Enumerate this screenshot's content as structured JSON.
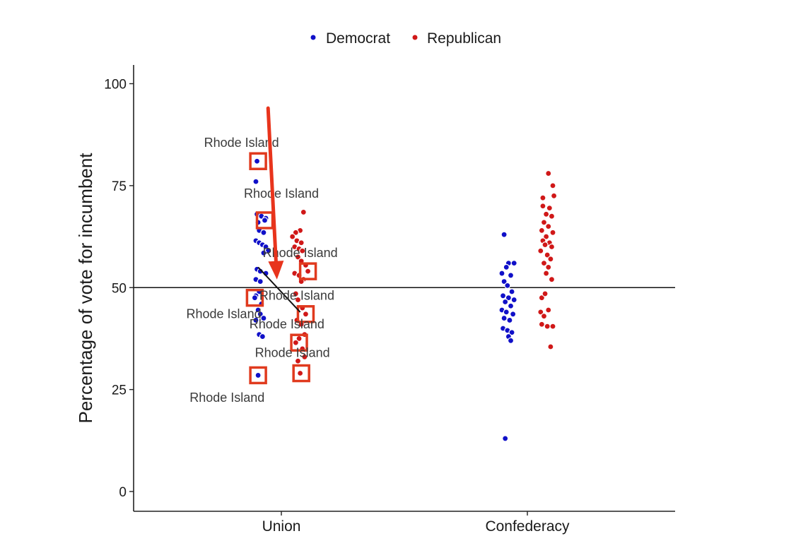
{
  "chart_data": {
    "type": "scatter",
    "ylabel": "Percentage of vote for incumbent",
    "categories": [
      "Union",
      "Confederacy"
    ],
    "ylim": [
      0,
      100
    ],
    "yticks": [
      0,
      25,
      50,
      75,
      100
    ],
    "reference_line": 50,
    "legend": {
      "placement": "top",
      "entries": [
        "Democrat",
        "Republican"
      ]
    },
    "colors": {
      "Democrat": "#1010c8",
      "Republican": "#d01818",
      "highlight": "#e03a1e",
      "arrow": "#e8341c"
    },
    "series": [
      {
        "name": "Democrat",
        "points": [
          {
            "category": "Union",
            "offset": -0.22,
            "y": 81
          },
          {
            "category": "Union",
            "offset": -0.23,
            "y": 76
          },
          {
            "category": "Union",
            "offset": -0.22,
            "y": 68
          },
          {
            "category": "Union",
            "offset": -0.18,
            "y": 67.5
          },
          {
            "category": "Union",
            "offset": -0.14,
            "y": 67
          },
          {
            "category": "Union",
            "offset": -0.15,
            "y": 66.5
          },
          {
            "category": "Union",
            "offset": -0.21,
            "y": 66
          },
          {
            "category": "Union",
            "offset": -0.2,
            "y": 64
          },
          {
            "category": "Union",
            "offset": -0.16,
            "y": 63.5
          },
          {
            "category": "Union",
            "offset": -0.23,
            "y": 61.5
          },
          {
            "category": "Union",
            "offset": -0.2,
            "y": 61
          },
          {
            "category": "Union",
            "offset": -0.17,
            "y": 60.5
          },
          {
            "category": "Union",
            "offset": -0.14,
            "y": 60
          },
          {
            "category": "Union",
            "offset": -0.12,
            "y": 59
          },
          {
            "category": "Union",
            "offset": -0.16,
            "y": 58.5
          },
          {
            "category": "Union",
            "offset": -0.22,
            "y": 54.5
          },
          {
            "category": "Union",
            "offset": -0.19,
            "y": 54
          },
          {
            "category": "Union",
            "offset": -0.14,
            "y": 53.5
          },
          {
            "category": "Union",
            "offset": -0.23,
            "y": 52
          },
          {
            "category": "Union",
            "offset": -0.19,
            "y": 51.5
          },
          {
            "category": "Union",
            "offset": -0.2,
            "y": 49
          },
          {
            "category": "Union",
            "offset": -0.23,
            "y": 48
          },
          {
            "category": "Union",
            "offset": -0.24,
            "y": 47.5
          },
          {
            "category": "Union",
            "offset": -0.18,
            "y": 46
          },
          {
            "category": "Union",
            "offset": -0.21,
            "y": 44.5
          },
          {
            "category": "Union",
            "offset": -0.19,
            "y": 43.5
          },
          {
            "category": "Union",
            "offset": -0.16,
            "y": 42.5
          },
          {
            "category": "Union",
            "offset": -0.23,
            "y": 42
          },
          {
            "category": "Union",
            "offset": -0.2,
            "y": 38.5
          },
          {
            "category": "Union",
            "offset": -0.17,
            "y": 38
          },
          {
            "category": "Union",
            "offset": -0.21,
            "y": 28.5
          },
          {
            "category": "Confederacy",
            "offset": -0.21,
            "y": 63
          },
          {
            "category": "Confederacy",
            "offset": -0.17,
            "y": 56
          },
          {
            "category": "Confederacy",
            "offset": -0.12,
            "y": 56
          },
          {
            "category": "Confederacy",
            "offset": -0.19,
            "y": 55
          },
          {
            "category": "Confederacy",
            "offset": -0.23,
            "y": 53.5
          },
          {
            "category": "Confederacy",
            "offset": -0.15,
            "y": 53
          },
          {
            "category": "Confederacy",
            "offset": -0.21,
            "y": 51.5
          },
          {
            "category": "Confederacy",
            "offset": -0.18,
            "y": 50.5
          },
          {
            "category": "Confederacy",
            "offset": -0.14,
            "y": 49
          },
          {
            "category": "Confederacy",
            "offset": -0.22,
            "y": 48
          },
          {
            "category": "Confederacy",
            "offset": -0.17,
            "y": 47.5
          },
          {
            "category": "Confederacy",
            "offset": -0.12,
            "y": 47
          },
          {
            "category": "Confederacy",
            "offset": -0.2,
            "y": 46.5
          },
          {
            "category": "Confederacy",
            "offset": -0.15,
            "y": 45.5
          },
          {
            "category": "Confederacy",
            "offset": -0.23,
            "y": 44.5
          },
          {
            "category": "Confederacy",
            "offset": -0.19,
            "y": 44
          },
          {
            "category": "Confederacy",
            "offset": -0.13,
            "y": 43.5
          },
          {
            "category": "Confederacy",
            "offset": -0.21,
            "y": 42.5
          },
          {
            "category": "Confederacy",
            "offset": -0.16,
            "y": 42
          },
          {
            "category": "Confederacy",
            "offset": -0.22,
            "y": 40
          },
          {
            "category": "Confederacy",
            "offset": -0.18,
            "y": 39.5
          },
          {
            "category": "Confederacy",
            "offset": -0.14,
            "y": 39
          },
          {
            "category": "Confederacy",
            "offset": -0.17,
            "y": 38
          },
          {
            "category": "Confederacy",
            "offset": -0.15,
            "y": 37
          },
          {
            "category": "Confederacy",
            "offset": -0.2,
            "y": 13
          }
        ]
      },
      {
        "name": "Republican",
        "points": [
          {
            "category": "Union",
            "offset": 0.2,
            "y": 68.5
          },
          {
            "category": "Union",
            "offset": 0.17,
            "y": 64
          },
          {
            "category": "Union",
            "offset": 0.13,
            "y": 63.5
          },
          {
            "category": "Union",
            "offset": 0.1,
            "y": 62.5
          },
          {
            "category": "Union",
            "offset": 0.14,
            "y": 61.5
          },
          {
            "category": "Union",
            "offset": 0.18,
            "y": 61
          },
          {
            "category": "Union",
            "offset": 0.12,
            "y": 60
          },
          {
            "category": "Union",
            "offset": 0.16,
            "y": 59.5
          },
          {
            "category": "Union",
            "offset": 0.19,
            "y": 59
          },
          {
            "category": "Union",
            "offset": 0.15,
            "y": 57.5
          },
          {
            "category": "Union",
            "offset": 0.18,
            "y": 56.5
          },
          {
            "category": "Union",
            "offset": 0.22,
            "y": 55.5
          },
          {
            "category": "Union",
            "offset": 0.24,
            "y": 54
          },
          {
            "category": "Union",
            "offset": 0.12,
            "y": 53.5
          },
          {
            "category": "Union",
            "offset": 0.16,
            "y": 53
          },
          {
            "category": "Union",
            "offset": 0.2,
            "y": 52
          },
          {
            "category": "Union",
            "offset": 0.18,
            "y": 51.5
          },
          {
            "category": "Union",
            "offset": 0.13,
            "y": 48.5
          },
          {
            "category": "Union",
            "offset": 0.15,
            "y": 47
          },
          {
            "category": "Union",
            "offset": 0.19,
            "y": 45
          },
          {
            "category": "Union",
            "offset": 0.22,
            "y": 43.5
          },
          {
            "category": "Union",
            "offset": 0.14,
            "y": 42
          },
          {
            "category": "Union",
            "offset": 0.18,
            "y": 41
          },
          {
            "category": "Union",
            "offset": 0.21,
            "y": 38.5
          },
          {
            "category": "Union",
            "offset": 0.16,
            "y": 37.5
          },
          {
            "category": "Union",
            "offset": 0.13,
            "y": 36.5
          },
          {
            "category": "Union",
            "offset": 0.19,
            "y": 35
          },
          {
            "category": "Union",
            "offset": 0.21,
            "y": 33
          },
          {
            "category": "Union",
            "offset": 0.15,
            "y": 32
          },
          {
            "category": "Union",
            "offset": 0.17,
            "y": 29
          },
          {
            "category": "Confederacy",
            "offset": 0.19,
            "y": 78
          },
          {
            "category": "Confederacy",
            "offset": 0.23,
            "y": 75
          },
          {
            "category": "Confederacy",
            "offset": 0.14,
            "y": 72
          },
          {
            "category": "Confederacy",
            "offset": 0.24,
            "y": 72.5
          },
          {
            "category": "Confederacy",
            "offset": 0.14,
            "y": 70
          },
          {
            "category": "Confederacy",
            "offset": 0.2,
            "y": 69.5
          },
          {
            "category": "Confederacy",
            "offset": 0.17,
            "y": 68
          },
          {
            "category": "Confederacy",
            "offset": 0.22,
            "y": 67.5
          },
          {
            "category": "Confederacy",
            "offset": 0.15,
            "y": 66
          },
          {
            "category": "Confederacy",
            "offset": 0.19,
            "y": 65
          },
          {
            "category": "Confederacy",
            "offset": 0.13,
            "y": 64
          },
          {
            "category": "Confederacy",
            "offset": 0.23,
            "y": 63.5
          },
          {
            "category": "Confederacy",
            "offset": 0.17,
            "y": 62.5
          },
          {
            "category": "Confederacy",
            "offset": 0.14,
            "y": 61.5
          },
          {
            "category": "Confederacy",
            "offset": 0.2,
            "y": 61
          },
          {
            "category": "Confederacy",
            "offset": 0.16,
            "y": 60.5
          },
          {
            "category": "Confederacy",
            "offset": 0.22,
            "y": 60
          },
          {
            "category": "Confederacy",
            "offset": 0.12,
            "y": 59
          },
          {
            "category": "Confederacy",
            "offset": 0.18,
            "y": 58
          },
          {
            "category": "Confederacy",
            "offset": 0.21,
            "y": 57
          },
          {
            "category": "Confederacy",
            "offset": 0.15,
            "y": 56
          },
          {
            "category": "Confederacy",
            "offset": 0.19,
            "y": 55
          },
          {
            "category": "Confederacy",
            "offset": 0.17,
            "y": 53.5
          },
          {
            "category": "Confederacy",
            "offset": 0.22,
            "y": 52
          },
          {
            "category": "Confederacy",
            "offset": 0.13,
            "y": 47.5
          },
          {
            "category": "Confederacy",
            "offset": 0.16,
            "y": 48.5
          },
          {
            "category": "Confederacy",
            "offset": 0.12,
            "y": 44
          },
          {
            "category": "Confederacy",
            "offset": 0.19,
            "y": 44.5
          },
          {
            "category": "Confederacy",
            "offset": 0.15,
            "y": 43
          },
          {
            "category": "Confederacy",
            "offset": 0.13,
            "y": 41
          },
          {
            "category": "Confederacy",
            "offset": 0.18,
            "y": 40.5
          },
          {
            "category": "Confederacy",
            "offset": 0.23,
            "y": 40.5
          },
          {
            "category": "Confederacy",
            "offset": 0.21,
            "y": 35.5
          }
        ]
      }
    ],
    "highlighted_points": [
      {
        "category": "Union",
        "offset": -0.21,
        "y": 81,
        "label": "Rhode Island"
      },
      {
        "category": "Union",
        "offset": -0.15,
        "y": 66.5,
        "label": "Rhode Island"
      },
      {
        "category": "Union",
        "offset": -0.24,
        "y": 47.5,
        "label": "Rhode Island"
      },
      {
        "category": "Union",
        "offset": -0.21,
        "y": 28.5,
        "label": "Rhode Island"
      },
      {
        "category": "Union",
        "offset": 0.24,
        "y": 54,
        "label": "Rhode Island"
      },
      {
        "category": "Union",
        "offset": 0.22,
        "y": 43.5,
        "label": "Rhode Island"
      },
      {
        "category": "Union",
        "offset": 0.16,
        "y": 36.5,
        "label": "Rhode Island"
      },
      {
        "category": "Union",
        "offset": 0.18,
        "y": 29,
        "label": "Rhode Island"
      }
    ],
    "annotations": [
      {
        "text": "Rhode Island",
        "category": "Union",
        "offset": -0.36,
        "y": 84.5
      },
      {
        "text": "Rhode Island",
        "category": "Union",
        "offset": 0.0,
        "y": 72
      },
      {
        "text": "Rhode Island",
        "category": "Union",
        "offset": 0.17,
        "y": 57.5
      },
      {
        "text": "Rhode Island",
        "category": "Union",
        "offset": 0.14,
        "y": 47
      },
      {
        "text": "Rhode Island",
        "category": "Union",
        "offset": -0.52,
        "y": 42.5
      },
      {
        "text": "Rhode Island",
        "category": "Union",
        "offset": 0.05,
        "y": 40
      },
      {
        "text": "Rhode Island",
        "category": "Union",
        "offset": 0.1,
        "y": 33
      },
      {
        "text": "Rhode Island",
        "category": "Union",
        "offset": -0.49,
        "y": 22
      }
    ],
    "connector_line": {
      "from": {
        "category": "Union",
        "offset": -0.21,
        "y": 55
      },
      "to": {
        "category": "Union",
        "offset": 0.17,
        "y": 44
      }
    },
    "arrow": {
      "from": {
        "category": "Union",
        "offset": -0.12,
        "y": 94
      },
      "to": {
        "category": "Union",
        "offset": -0.04,
        "y": 52
      }
    }
  }
}
